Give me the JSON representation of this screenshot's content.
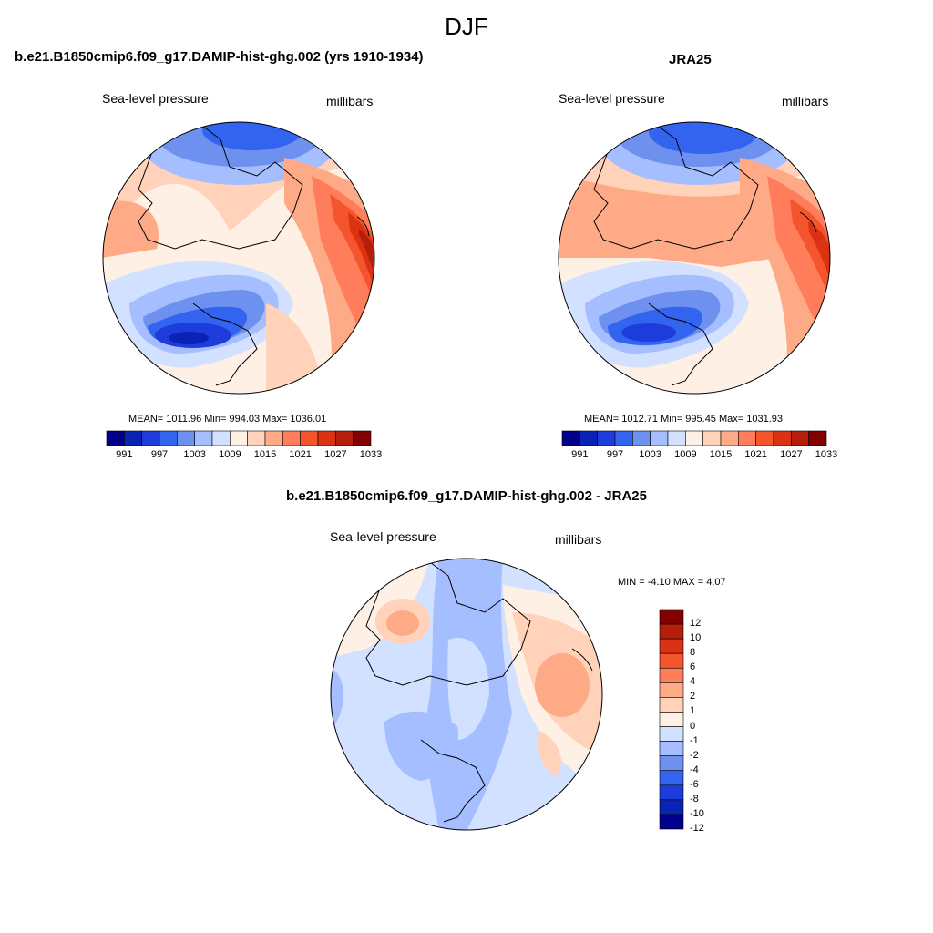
{
  "title": "DJF",
  "panels": [
    {
      "title": "b.e21.B1850cmip6.f09_g17.DAMIP-hist-ghg.002 (yrs 1910-1934)",
      "left_label": "Sea-level pressure",
      "right_label": "millibars",
      "stats": "MEAN= 1011.96  Min= 994.03  Max= 1036.01",
      "colorbar_ticks": [
        "991",
        "997",
        "1003",
        "1009",
        "1015",
        "1021",
        "1027",
        "1033"
      ]
    },
    {
      "title": "JRA25",
      "left_label": "Sea-level pressure",
      "right_label": "millibars",
      "stats": "MEAN= 1012.71  Min= 995.45  Max= 1031.93",
      "colorbar_ticks": [
        "991",
        "997",
        "1003",
        "1009",
        "1015",
        "1021",
        "1027",
        "1033"
      ]
    },
    {
      "title": "b.e21.B1850cmip6.f09_g17.DAMIP-hist-ghg.002 - JRA25",
      "left_label": "Sea-level pressure",
      "right_label": "millibars",
      "stats": "MIN =  -4.10 MAX =   4.07",
      "colorbar_ticks": [
        "12",
        "10",
        "8",
        "6",
        "4",
        "2",
        "1",
        "0",
        "-1",
        "-2",
        "-4",
        "-6",
        "-8",
        "-10",
        "-12"
      ]
    }
  ],
  "abs_colors": [
    "#00008b",
    "#0a23b4",
    "#1e3cdc",
    "#3264f0",
    "#6e91f0",
    "#a5beff",
    "#d2e1ff",
    "#fff0e6",
    "#ffd2b9",
    "#ffaa87",
    "#ff7d5a",
    "#f5552d",
    "#dc3214",
    "#b41e0a",
    "#820000"
  ],
  "diff_colors_top_to_bottom": [
    "#820000",
    "#b41e0a",
    "#dc3214",
    "#f5552d",
    "#ff7d5a",
    "#ffaa87",
    "#ffd2b9",
    "#fff0e6",
    "#d2e1ff",
    "#a5beff",
    "#6e91f0",
    "#3264f0",
    "#1e3cdc",
    "#0a23b4",
    "#00008b"
  ]
}
